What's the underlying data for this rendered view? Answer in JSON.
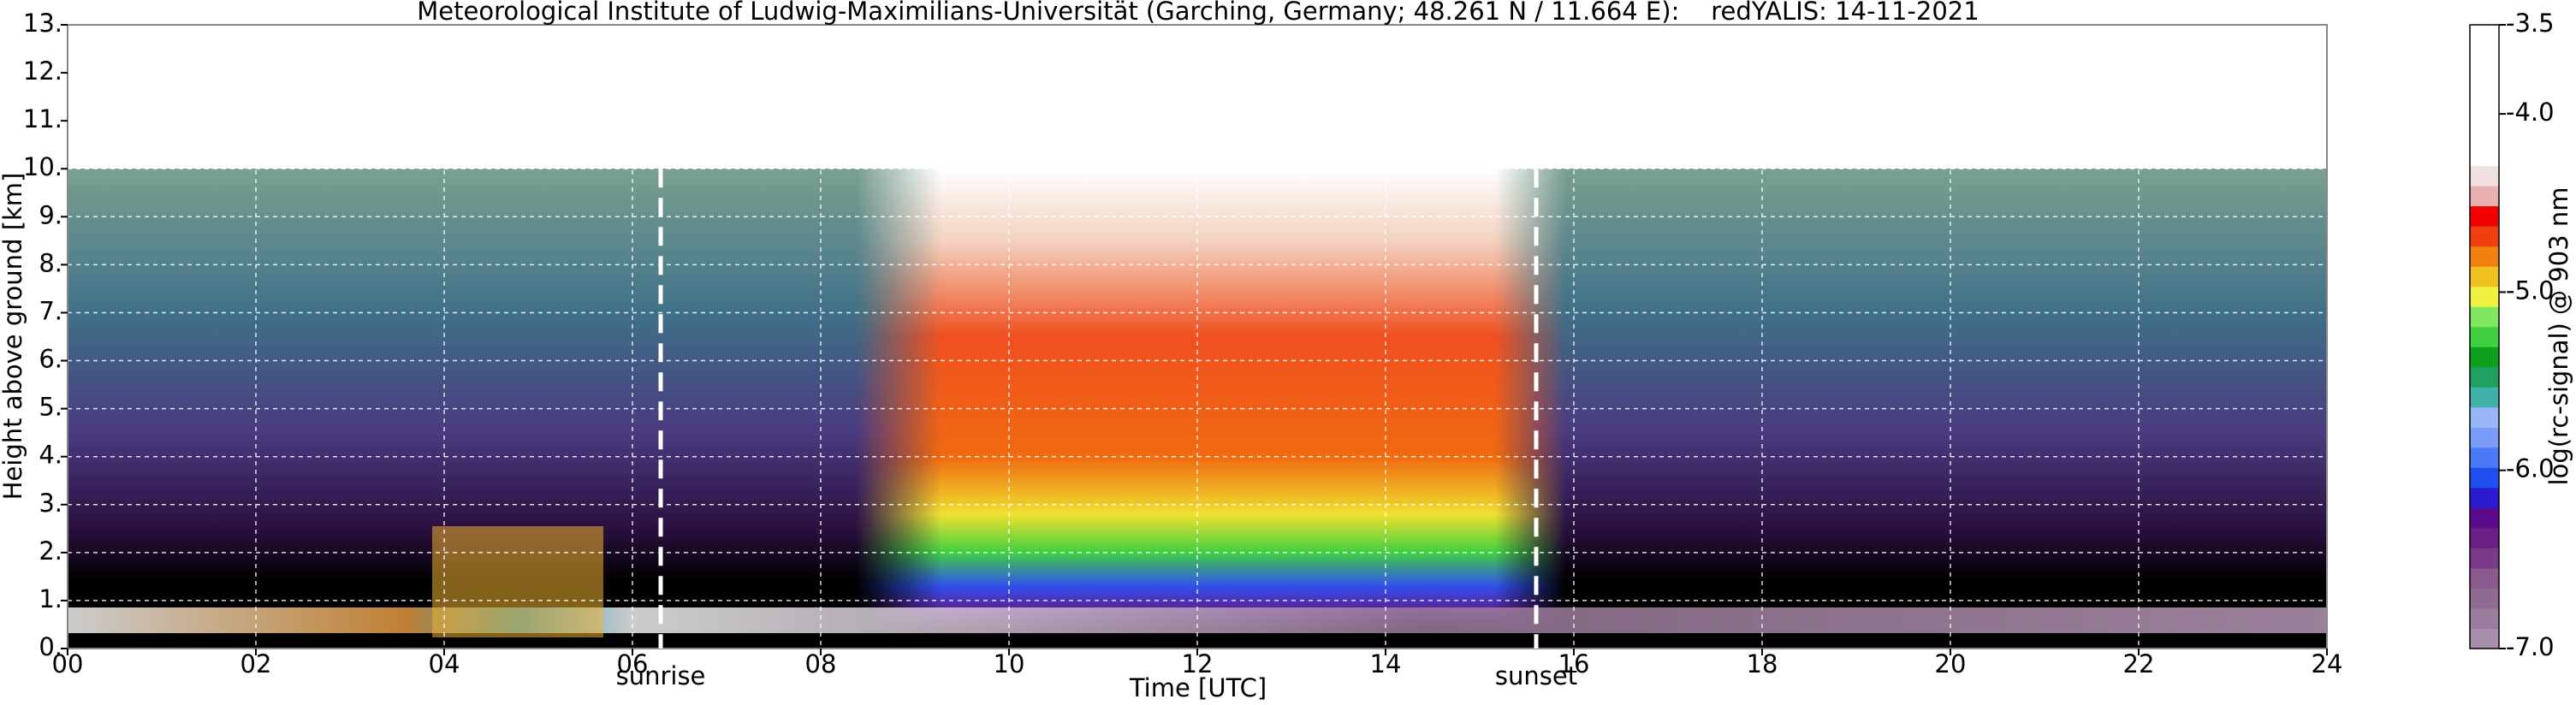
{
  "chart_data": {
    "type": "heatmap",
    "title": "Meteorological Institute of Ludwig-Maximilians-Universität (Garching, Germany; 48.261 N / 11.664 E):    redYALIS: 14-11-2021",
    "x_label": "Time [UTC]",
    "y_label": "Height above ground [km]",
    "xlim": [
      0,
      24
    ],
    "xticks": [
      {
        "value": 0,
        "label": "00"
      },
      {
        "value": 2,
        "label": "02"
      },
      {
        "value": 4,
        "label": "04"
      },
      {
        "value": 6,
        "label": "06"
      },
      {
        "value": 8,
        "label": "08"
      },
      10,
      12,
      14,
      16,
      18,
      20,
      22,
      24
    ],
    "ylim": [
      0,
      13
    ],
    "yticks": [
      {
        "value": 0,
        "label": "0."
      },
      {
        "value": 1,
        "label": "1."
      },
      {
        "value": 2,
        "label": "2."
      },
      {
        "value": 3,
        "label": "3."
      },
      {
        "value": 4,
        "label": "4."
      },
      {
        "value": 5,
        "label": "5."
      },
      {
        "value": 6,
        "label": "6."
      },
      {
        "value": 7,
        "label": "7."
      },
      {
        "value": 8,
        "label": "8."
      },
      {
        "value": 9,
        "label": "9."
      },
      {
        "value": 10,
        "label": "10."
      },
      {
        "value": 11,
        "label": "11."
      },
      {
        "value": 12,
        "label": "12."
      },
      {
        "value": 13,
        "label": "13."
      }
    ],
    "grid": true,
    "annotations": [
      {
        "text": "sunrise",
        "x": 6.3
      },
      {
        "text": "sunset",
        "x": 15.6
      }
    ],
    "colorbar": {
      "label": "log(rc-signal) @ 903 nm",
      "lim": [
        -7,
        -3.5
      ],
      "ticks": [
        -3.5,
        {
          "value": -4,
          "label": "-4.0"
        },
        {
          "value": -5,
          "label": "-5.0"
        },
        {
          "value": -6,
          "label": "-6.0"
        },
        {
          "value": -7,
          "label": "-7.0"
        }
      ],
      "colors": [
        "#a68fa8",
        "#9b7e9e",
        "#8f6a92",
        "#8a5a8e",
        "#7a3a85",
        "#6a1f85",
        "#5a0a8a",
        "#2a1ad0",
        "#2050f0",
        "#4a7af8",
        "#7a9cf8",
        "#9ab4f8",
        "#40b0a8",
        "#20a060",
        "#10a020",
        "#40d040",
        "#80e860",
        "#f0f040",
        "#f0c020",
        "#f08010",
        "#f04010",
        "#f00000",
        "#e8b0b0",
        "#f0e0e0",
        "#ffffff",
        "#ffffff",
        "#ffffff",
        "#ffffff",
        "#ffffff",
        "#ffffff",
        "#ffffff"
      ]
    }
  }
}
